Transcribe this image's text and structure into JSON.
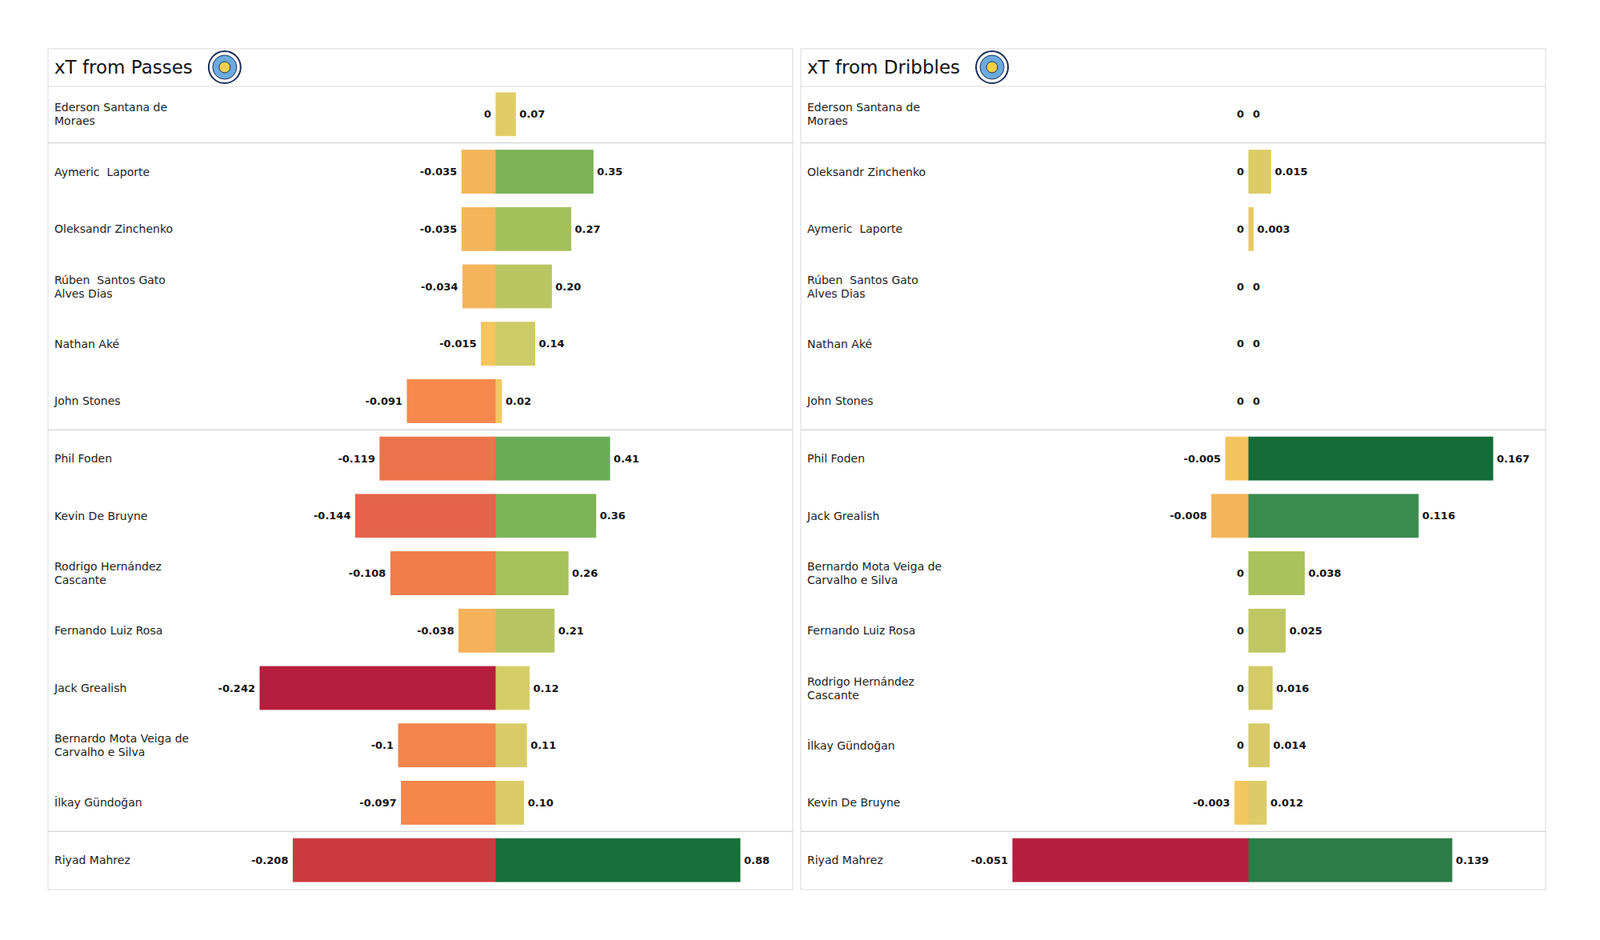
{
  "chart_data": [
    {
      "type": "bar",
      "title": "xT from Passes",
      "orientation": "horizontal",
      "data_labels": true,
      "tick_labels": false,
      "categories": [
        "Ederson Santana de Moraes",
        "Aymeric  Laporte",
        "Oleksandr Zinchenko",
        "Rúben  Santos Gato Alves Dias",
        "Nathan Aké",
        "John Stones",
        "Phil Foden",
        "Kevin De Bruyne",
        "Rodrigo Hernández Cascante",
        "Fernando Luiz Rosa",
        "Jack Grealish",
        "Bernardo Mota Veiga de Carvalho e Silva",
        "İlkay Gündoğan",
        "Riyad Mahrez"
      ],
      "series": [
        {
          "values": [
            0,
            -0.035,
            -0.035,
            -0.034,
            -0.015,
            -0.091,
            -0.119,
            -0.144,
            -0.108,
            -0.038,
            -0.242,
            -0.1,
            -0.097,
            -0.208
          ],
          "value_labels": [
            "0",
            "-0.035",
            "-0.035",
            "-0.034",
            "-0.015",
            "-0.091",
            "-0.119",
            "-0.144",
            "-0.108",
            "-0.038",
            "-0.242",
            "-0.1",
            "-0.097",
            "-0.208"
          ],
          "colors": [
            "#e0cc66",
            "#f4b45a",
            "#f4b45a",
            "#f4b45a",
            "#f5c55e",
            "#f7894c",
            "#ec744a",
            "#e4634a",
            "#f07d4a",
            "#f5b25a",
            "#b51f3d",
            "#f3844b",
            "#f5874b",
            "#cc3a3f"
          ]
        },
        {
          "values": [
            0.07,
            0.35,
            0.27,
            0.2,
            0.14,
            0.02,
            0.41,
            0.36,
            0.26,
            0.21,
            0.12,
            0.11,
            0.1,
            0.88
          ],
          "value_labels": [
            "0.07",
            "0.35",
            "0.27",
            "0.20",
            "0.14",
            "0.02",
            "0.41",
            "0.36",
            "0.26",
            "0.21",
            "0.12",
            "0.11",
            "0.10",
            "0.88"
          ],
          "colors": [
            "#e0cc66",
            "#7fb356",
            "#a2c05a",
            "#b9c662",
            "#cdcb66",
            "#f2c862",
            "#6aab57",
            "#7cb357",
            "#a6c25c",
            "#b6c562",
            "#d6cd69",
            "#d9cc69",
            "#dbcc69",
            "#17703a"
          ]
        }
      ]
    },
    {
      "type": "bar",
      "title": "xT from Dribbles",
      "orientation": "horizontal",
      "data_labels": true,
      "tick_labels": false,
      "categories": [
        "Ederson Santana de Moraes",
        "Oleksandr Zinchenko",
        "Aymeric  Laporte",
        "Rúben  Santos Gato Alves Dias",
        "Nathan Aké",
        "John Stones",
        "Phil Foden",
        "Jack Grealish",
        "Bernardo Mota Veiga de Carvalho e Silva",
        "Fernando Luiz Rosa",
        "Rodrigo Hernández Cascante",
        "İlkay Gündoğan",
        "Kevin De Bruyne",
        "Riyad Mahrez"
      ],
      "series": [
        {
          "values": [
            0,
            0,
            0,
            0,
            0,
            0,
            -0.005,
            -0.008,
            0,
            0,
            0,
            0,
            -0.003,
            -0.051
          ],
          "value_labels": [
            "0",
            "0",
            "0",
            "0",
            "0",
            "0",
            "-0.005",
            "-0.008",
            "0",
            "0",
            "0",
            "0",
            "-0.003",
            "-0.051"
          ],
          "colors": [
            "#f0cd66",
            "#f0cd66",
            "#f0cd66",
            "#f0cd66",
            "#f0cd66",
            "#f0cd66",
            "#f3c35e",
            "#f4b45a",
            "#f0cd66",
            "#f0cd66",
            "#f0cd66",
            "#f0cd66",
            "#f3c760",
            "#b51f3d"
          ]
        },
        {
          "values": [
            0,
            0.015,
            0.003,
            0,
            0,
            0,
            0.167,
            0.116,
            0.038,
            0.025,
            0.016,
            0.014,
            0.012,
            0.139
          ],
          "value_labels": [
            "0",
            "0.015",
            "0.003",
            "0",
            "0",
            "0",
            "0.167",
            "0.116",
            "0.038",
            "0.025",
            "0.016",
            "0.014",
            "0.012",
            "0.139"
          ],
          "colors": [
            "#e0cc66",
            "#ddcb66",
            "#e6cb64",
            "#e0cc66",
            "#e0cc66",
            "#e0cc66",
            "#146b38",
            "#3a8c4e",
            "#a9c25c",
            "#bfc762",
            "#d5ca66",
            "#d8ca66",
            "#dccb67",
            "#2b7c45"
          ]
        }
      ]
    }
  ]
}
